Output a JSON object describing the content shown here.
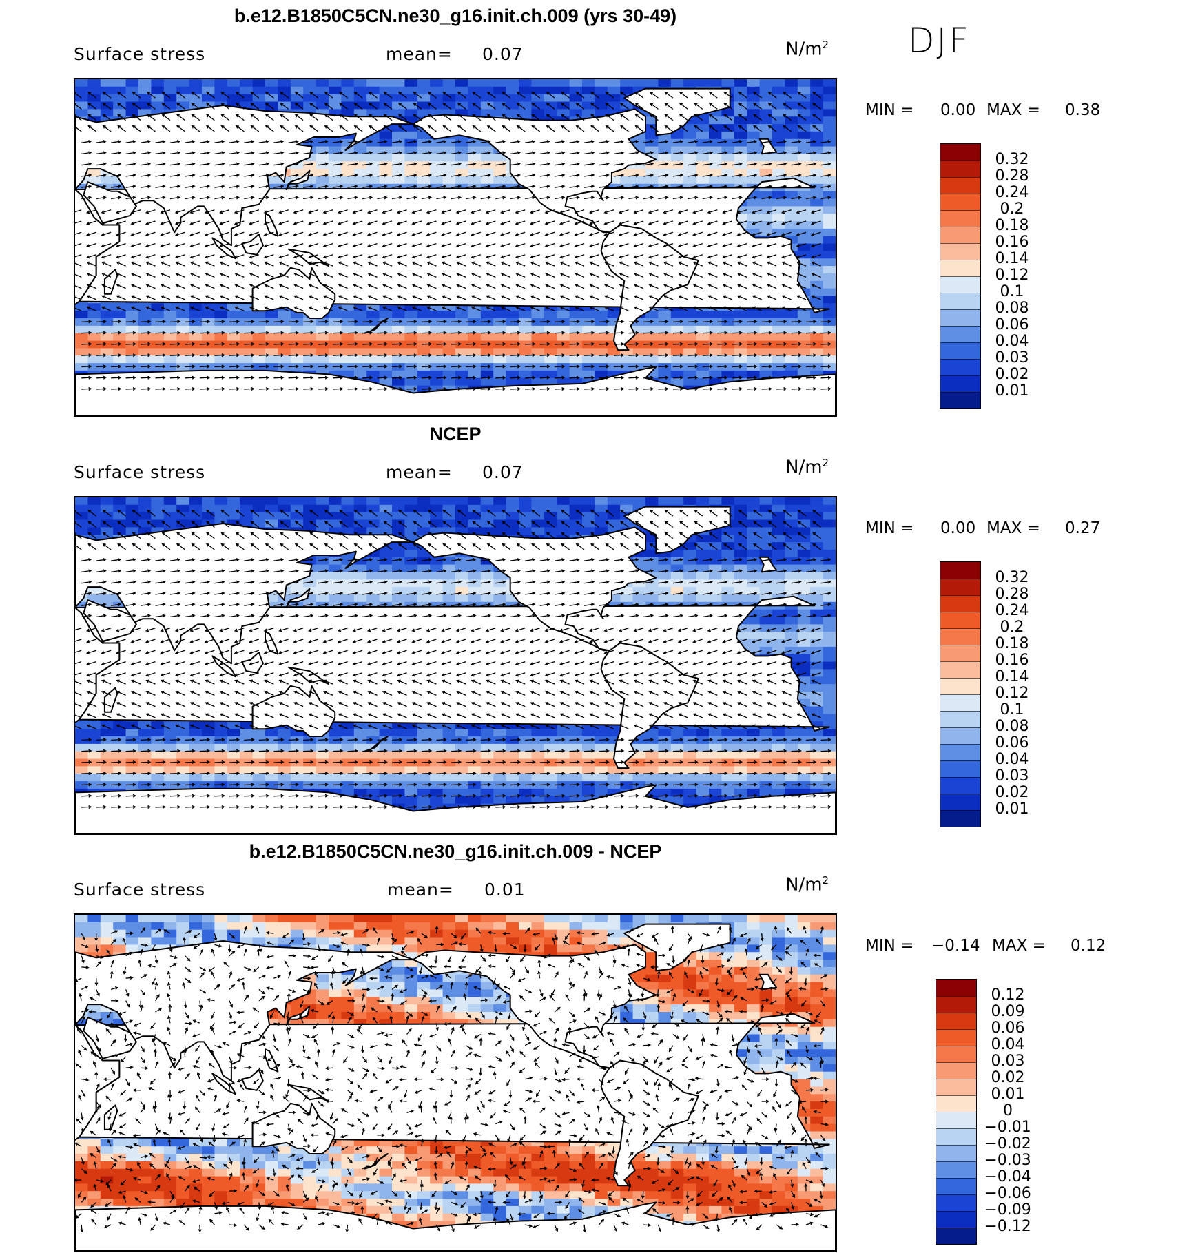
{
  "season": "DJF",
  "panels": [
    {
      "title": "b.e12.B1850C5CN.ne30_g16.init.ch.009 (yrs 30-49)",
      "variable": "Surface stress",
      "mean_label": "mean=",
      "mean_value": "0.07",
      "units": "N/m",
      "units_sup": "2",
      "min_label": "MIN =",
      "min_value": "0.00",
      "max_label": "MAX =",
      "max_value": "0.38",
      "colorbar_labels": [
        "0.32",
        "0.28",
        "0.24",
        "0.2",
        "0.18",
        "0.16",
        "0.14",
        "0.12",
        "0.1",
        "0.08",
        "0.06",
        "0.04",
        "0.03",
        "0.02",
        "0.01"
      ],
      "colorbar_colors": [
        "#8b0000",
        "#b31a08",
        "#d73a10",
        "#ee5a28",
        "#f5784a",
        "#f89a74",
        "#fbbc9e",
        "#fde2cc",
        "#dbe9f7",
        "#b9d3f2",
        "#8fb5ec",
        "#5f8fe4",
        "#3466dc",
        "#1a44d4",
        "#0b2ec0",
        "#051d8c"
      ]
    },
    {
      "title": "NCEP",
      "variable": "Surface stress",
      "mean_label": "mean=",
      "mean_value": "0.07",
      "units": "N/m",
      "units_sup": "2",
      "min_label": "MIN =",
      "min_value": "0.00",
      "max_label": "MAX =",
      "max_value": "0.27",
      "colorbar_labels": [
        "0.32",
        "0.28",
        "0.24",
        "0.2",
        "0.18",
        "0.16",
        "0.14",
        "0.12",
        "0.1",
        "0.08",
        "0.06",
        "0.04",
        "0.03",
        "0.02",
        "0.01"
      ],
      "colorbar_colors": [
        "#8b0000",
        "#b31a08",
        "#d73a10",
        "#ee5a28",
        "#f5784a",
        "#f89a74",
        "#fbbc9e",
        "#fde2cc",
        "#dbe9f7",
        "#b9d3f2",
        "#8fb5ec",
        "#5f8fe4",
        "#3466dc",
        "#1a44d4",
        "#0b2ec0",
        "#051d8c"
      ]
    },
    {
      "title": "b.e12.B1850C5CN.ne30_g16.init.ch.009 - NCEP",
      "variable": "Surface stress",
      "mean_label": "mean=",
      "mean_value": "0.01",
      "units": "N/m",
      "units_sup": "2",
      "min_label": "MIN =",
      "min_value": "−0.14",
      "max_label": "MAX =",
      "max_value": "0.12",
      "colorbar_labels": [
        "0.12",
        "0.09",
        "0.06",
        "0.04",
        "0.03",
        "0.02",
        "0.01",
        "0",
        "−0.01",
        "−0.02",
        "−0.03",
        "−0.04",
        "−0.06",
        "−0.09",
        "−0.12"
      ],
      "colorbar_colors": [
        "#8b0000",
        "#b31a08",
        "#d73a10",
        "#ee5a28",
        "#f5784a",
        "#f89a74",
        "#fbbc9e",
        "#fde2cc",
        "#dbe9f7",
        "#b9d3f2",
        "#8fb5ec",
        "#5f8fe4",
        "#3466dc",
        "#1a44d4",
        "#0b2ec0",
        "#051d8c"
      ]
    }
  ]
}
